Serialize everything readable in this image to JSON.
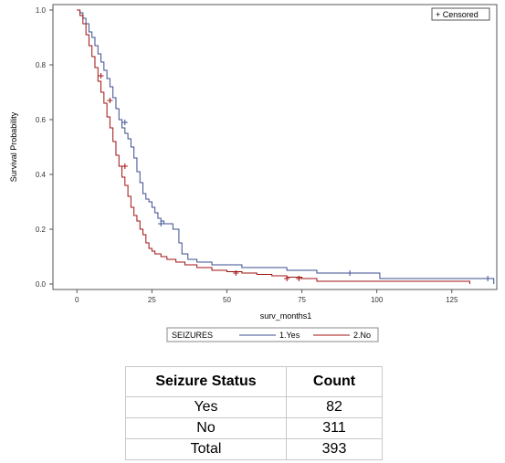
{
  "chart_data": {
    "type": "line",
    "title": "",
    "xlabel": "surv_months1",
    "ylabel": "Survival Probability",
    "xlim": [
      -8,
      140
    ],
    "ylim": [
      0.0,
      1.0
    ],
    "xticks": [
      0,
      25,
      50,
      75,
      100,
      125
    ],
    "yticks": [
      0.0,
      0.2,
      0.4,
      0.6,
      0.8,
      1.0
    ],
    "ytick_labels": [
      "0.0",
      "0.2",
      "0.4",
      "0.6",
      "0.8",
      "1.0"
    ],
    "step": true,
    "censored_legend": "+ Censored",
    "legend_title": "SEIZURES",
    "legend_position": "bottom",
    "series": [
      {
        "name": "1.Yes",
        "color": "#3b4d8f",
        "x": [
          0,
          1,
          2,
          3,
          4,
          5,
          6,
          7,
          8,
          9,
          10,
          11,
          12,
          13,
          14,
          15,
          16,
          17,
          18,
          19,
          20,
          21,
          22,
          23,
          24,
          25,
          26,
          27,
          28,
          29,
          30,
          32,
          34,
          35,
          37,
          40,
          45,
          50,
          55,
          60,
          70,
          80,
          90,
          101,
          110,
          120,
          130,
          139
        ],
        "y": [
          1.0,
          0.99,
          0.97,
          0.95,
          0.92,
          0.9,
          0.87,
          0.84,
          0.81,
          0.78,
          0.75,
          0.72,
          0.68,
          0.64,
          0.6,
          0.57,
          0.55,
          0.53,
          0.5,
          0.46,
          0.41,
          0.37,
          0.33,
          0.31,
          0.3,
          0.28,
          0.26,
          0.24,
          0.23,
          0.22,
          0.22,
          0.2,
          0.15,
          0.11,
          0.09,
          0.08,
          0.07,
          0.07,
          0.06,
          0.06,
          0.05,
          0.04,
          0.04,
          0.02,
          0.02,
          0.02,
          0.02,
          0.0
        ],
        "censored": [
          [
            16,
            0.59
          ],
          [
            28,
            0.22
          ],
          [
            91,
            0.04
          ],
          [
            137,
            0.02
          ]
        ]
      },
      {
        "name": "2.No",
        "color": "#a01010",
        "x": [
          0,
          1,
          2,
          3,
          4,
          5,
          6,
          7,
          8,
          9,
          10,
          11,
          12,
          13,
          14,
          15,
          16,
          17,
          18,
          19,
          20,
          21,
          22,
          23,
          24,
          25,
          26,
          28,
          30,
          33,
          36,
          40,
          45,
          50,
          55,
          60,
          65,
          70,
          75,
          80,
          85,
          90,
          100,
          110,
          120,
          131
        ],
        "y": [
          1.0,
          0.98,
          0.95,
          0.91,
          0.87,
          0.83,
          0.79,
          0.74,
          0.7,
          0.66,
          0.61,
          0.57,
          0.52,
          0.47,
          0.43,
          0.39,
          0.36,
          0.32,
          0.28,
          0.25,
          0.23,
          0.2,
          0.18,
          0.15,
          0.13,
          0.12,
          0.11,
          0.1,
          0.09,
          0.08,
          0.07,
          0.06,
          0.05,
          0.045,
          0.04,
          0.035,
          0.03,
          0.025,
          0.02,
          0.01,
          0.01,
          0.01,
          0.01,
          0.01,
          0.01,
          0.0
        ],
        "censored": [
          [
            8,
            0.76
          ],
          [
            11,
            0.67
          ],
          [
            16,
            0.43
          ],
          [
            53,
            0.04
          ],
          [
            70,
            0.02
          ],
          [
            74,
            0.02
          ]
        ]
      }
    ]
  },
  "table": {
    "headers": [
      "Seizure Status",
      "Count"
    ],
    "rows": [
      {
        "label": "Yes",
        "count": "82"
      },
      {
        "label": "No",
        "count": "311"
      },
      {
        "label": "Total",
        "count": "393"
      }
    ]
  }
}
